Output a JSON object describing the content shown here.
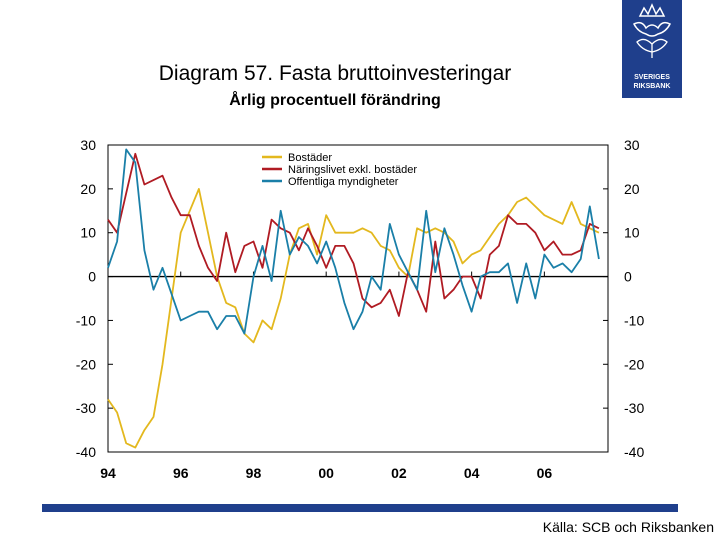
{
  "title": "Diagram 57. Fasta bruttoinvesteringar",
  "subtitle": "Årlig procentuell förändring",
  "logo": {
    "line1": "SVERIGES",
    "line2": "RIKSBANK"
  },
  "source": "Källa: SCB och Riksbanken",
  "colors": {
    "brand": "#1f3f8c"
  },
  "chart_data": {
    "type": "line",
    "title": "Diagram 57. Fasta bruttoinvesteringar",
    "subtitle": "Årlig procentuell förändring",
    "ylim": [
      -40,
      30
    ],
    "y_ticks": [
      30,
      20,
      10,
      0,
      -10,
      -20,
      -30,
      -40
    ],
    "y_tick_labels": [
      "30",
      "20",
      "10",
      "0",
      "-10",
      "-20",
      "-30",
      "-40"
    ],
    "x_tick_labels": [
      "94",
      "96",
      "98",
      "00",
      "02",
      "04",
      "06"
    ],
    "x_tick_years": [
      1994,
      1996,
      1998,
      2000,
      2002,
      2004,
      2006
    ],
    "xlim": [
      1994,
      2007.75
    ],
    "dual_y_axis": true,
    "grid": false,
    "legend_position": "top-center",
    "x": [
      "1994Q1",
      "1994Q2",
      "1994Q3",
      "1994Q4",
      "1995Q1",
      "1995Q2",
      "1995Q3",
      "1995Q4",
      "1996Q1",
      "1996Q2",
      "1996Q3",
      "1996Q4",
      "1997Q1",
      "1997Q2",
      "1997Q3",
      "1997Q4",
      "1998Q1",
      "1998Q2",
      "1998Q3",
      "1998Q4",
      "1999Q1",
      "1999Q2",
      "1999Q3",
      "1999Q4",
      "2000Q1",
      "2000Q2",
      "2000Q3",
      "2000Q4",
      "2001Q1",
      "2001Q2",
      "2001Q3",
      "2001Q4",
      "2002Q1",
      "2002Q2",
      "2002Q3",
      "2002Q4",
      "2003Q1",
      "2003Q2",
      "2003Q3",
      "2003Q4",
      "2004Q1",
      "2004Q2",
      "2004Q3",
      "2004Q4",
      "2005Q1",
      "2005Q2",
      "2005Q3",
      "2005Q4",
      "2006Q1",
      "2006Q2",
      "2006Q3",
      "2006Q4",
      "2007Q1",
      "2007Q2",
      "2007Q3"
    ],
    "series": [
      {
        "name": "Bostäder",
        "color": "#e3b81e",
        "values": [
          -28,
          -31,
          -38,
          -39,
          -35,
          -32,
          -20,
          -5,
          10,
          15,
          20,
          10,
          0,
          -6,
          -7,
          -13,
          -15,
          -10,
          -12,
          -5,
          5,
          11,
          12,
          5,
          14,
          10,
          10,
          10,
          11,
          10,
          7,
          6,
          2,
          0,
          11,
          10,
          11,
          10,
          8,
          3,
          5,
          6,
          9,
          12,
          14,
          17,
          18,
          16,
          14,
          13,
          12,
          17,
          12,
          11,
          10
        ]
      },
      {
        "name": "Näringslivet exkl. bostäder",
        "color": "#b01b23",
        "values": [
          13,
          10,
          19,
          28,
          21,
          22,
          23,
          18,
          14,
          14,
          7,
          2,
          -1,
          10,
          1,
          7,
          8,
          2,
          13,
          11,
          10,
          6,
          11,
          7,
          2,
          7,
          7,
          3,
          -5,
          -7,
          -6,
          -3,
          -9,
          1,
          -3,
          -8,
          8,
          -5,
          -3,
          0,
          0,
          -5,
          5,
          7,
          14,
          12,
          12,
          10,
          6,
          8,
          5,
          5,
          6,
          12,
          11
        ]
      },
      {
        "name": "Offentliga myndigheter",
        "color": "#1a7fa8",
        "values": [
          2,
          8,
          29,
          26,
          6,
          -3,
          2,
          -4,
          -10,
          -9,
          -8,
          -8,
          -12,
          -9,
          -9,
          -13,
          0,
          7,
          -1,
          15,
          5,
          9,
          7,
          3,
          8,
          2,
          -6,
          -12,
          -8,
          0,
          -3,
          12,
          5,
          1,
          -3,
          15,
          1,
          11,
          5,
          -2,
          -8,
          0,
          1,
          1,
          3,
          -6,
          3,
          -5,
          5,
          2,
          3,
          1,
          4,
          16,
          4
        ]
      }
    ]
  }
}
